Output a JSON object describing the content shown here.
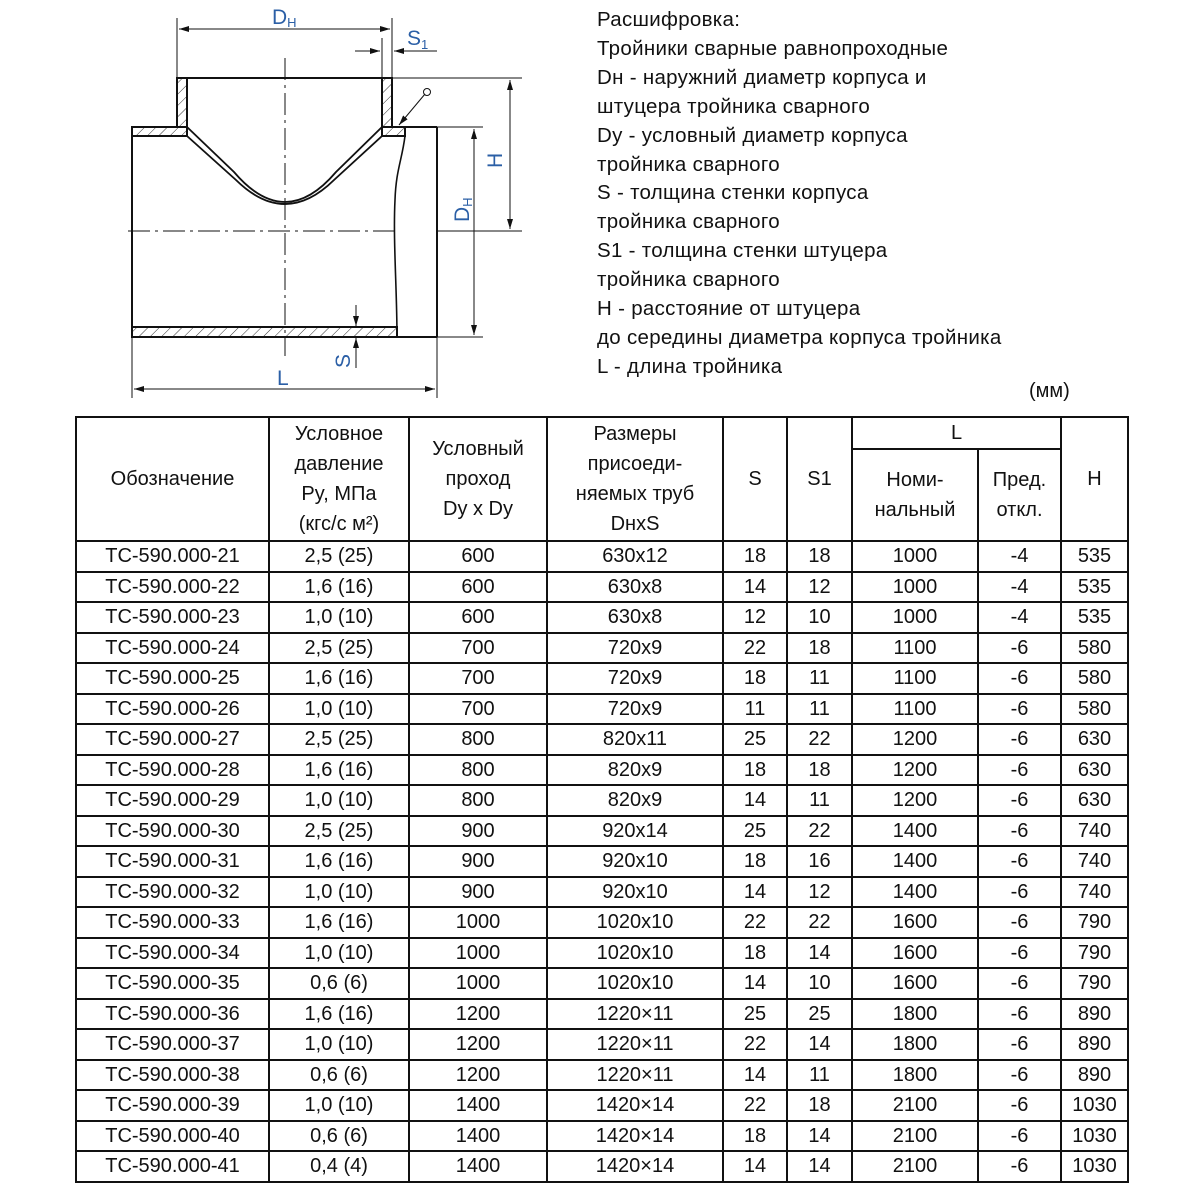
{
  "drawing": {
    "labels": {
      "dn_top": "D",
      "dn_sub": "H",
      "s1": "S",
      "s1_sub": "1",
      "h": "H",
      "dn_right": "D",
      "dn_right_sub": "H",
      "s": "S",
      "l": "L"
    },
    "label_color": "#2b5fa6"
  },
  "legend": {
    "lines": [
      "Расшифровка:",
      "Тройники сварные равнопроходные",
      "Dн - наружний диаметр корпуса и",
      "штуцера тройника сварного",
      "Dy - условный диаметр корпуса",
      "тройника сварного",
      "S - толщина стенки корпуса",
      "тройника сварного",
      "S1 - толщина стенки штуцера",
      "тройника сварного",
      "H - расстояние от штуцера",
      "до середины диаметра корпуса тройника",
      "L - длина тройника"
    ]
  },
  "units": "(мм)",
  "table": {
    "headers": {
      "designation": "Обозначение",
      "pressure": [
        "Условное",
        "давление",
        "Py, МПа",
        "(кгс/с м²)"
      ],
      "bore": [
        "Условный",
        "проход",
        "Dy x Dy"
      ],
      "pipes": [
        "Размеры",
        "присоеди-",
        "няемых труб",
        "DнxS"
      ],
      "s": "S",
      "s1": "S1",
      "l": "L",
      "l_nominal": [
        "Номи-",
        "нальный"
      ],
      "l_tolerance": [
        "Пред.",
        "откл."
      ],
      "h": "H"
    },
    "rows": [
      [
        "ТС-590.000-21",
        "2,5 (25)",
        "600",
        "630x12",
        "18",
        "18",
        "1000",
        "-4",
        "535"
      ],
      [
        "ТС-590.000-22",
        "1,6 (16)",
        "600",
        "630x8",
        "14",
        "12",
        "1000",
        "-4",
        "535"
      ],
      [
        "ТС-590.000-23",
        "1,0 (10)",
        "600",
        "630x8",
        "12",
        "10",
        "1000",
        "-4",
        "535"
      ],
      [
        "ТС-590.000-24",
        "2,5 (25)",
        "700",
        "720x9",
        "22",
        "18",
        "1100",
        "-6",
        "580"
      ],
      [
        "ТС-590.000-25",
        "1,6 (16)",
        "700",
        "720x9",
        "18",
        "11",
        "1100",
        "-6",
        "580"
      ],
      [
        "ТС-590.000-26",
        "1,0 (10)",
        "700",
        "720x9",
        "11",
        "11",
        "1100",
        "-6",
        "580"
      ],
      [
        "ТС-590.000-27",
        "2,5 (25)",
        "800",
        "820x11",
        "25",
        "22",
        "1200",
        "-6",
        "630"
      ],
      [
        "ТС-590.000-28",
        "1,6 (16)",
        "800",
        "820x9",
        "18",
        "18",
        "1200",
        "-6",
        "630"
      ],
      [
        "ТС-590.000-29",
        "1,0 (10)",
        "800",
        "820x9",
        "14",
        "11",
        "1200",
        "-6",
        "630"
      ],
      [
        "ТС-590.000-30",
        "2,5 (25)",
        "900",
        "920x14",
        "25",
        "22",
        "1400",
        "-6",
        "740"
      ],
      [
        "ТС-590.000-31",
        "1,6 (16)",
        "900",
        "920x10",
        "18",
        "16",
        "1400",
        "-6",
        "740"
      ],
      [
        "ТС-590.000-32",
        "1,0 (10)",
        "900",
        "920x10",
        "14",
        "12",
        "1400",
        "-6",
        "740"
      ],
      [
        "ТС-590.000-33",
        "1,6 (16)",
        "1000",
        "1020x10",
        "22",
        "22",
        "1600",
        "-6",
        "790"
      ],
      [
        "ТС-590.000-34",
        "1,0 (10)",
        "1000",
        "1020x10",
        "18",
        "14",
        "1600",
        "-6",
        "790"
      ],
      [
        "ТС-590.000-35",
        "0,6 (6)",
        "1000",
        "1020x10",
        "14",
        "10",
        "1600",
        "-6",
        "790"
      ],
      [
        "ТС-590.000-36",
        "1,6 (16)",
        "1200",
        "1220×11",
        "25",
        "25",
        "1800",
        "-6",
        "890"
      ],
      [
        "ТС-590.000-37",
        "1,0 (10)",
        "1200",
        "1220×11",
        "22",
        "14",
        "1800",
        "-6",
        "890"
      ],
      [
        "ТС-590.000-38",
        "0,6 (6)",
        "1200",
        "1220×11",
        "14",
        "11",
        "1800",
        "-6",
        "890"
      ],
      [
        "ТС-590.000-39",
        "1,0 (10)",
        "1400",
        "1420×14",
        "22",
        "18",
        "2100",
        "-6",
        "1030"
      ],
      [
        "ТС-590.000-40",
        "0,6 (6)",
        "1400",
        "1420×14",
        "18",
        "14",
        "2100",
        "-6",
        "1030"
      ],
      [
        "ТС-590.000-41",
        "0,4 (4)",
        "1400",
        "1420×14",
        "14",
        "14",
        "2100",
        "-6",
        "1030"
      ]
    ]
  }
}
